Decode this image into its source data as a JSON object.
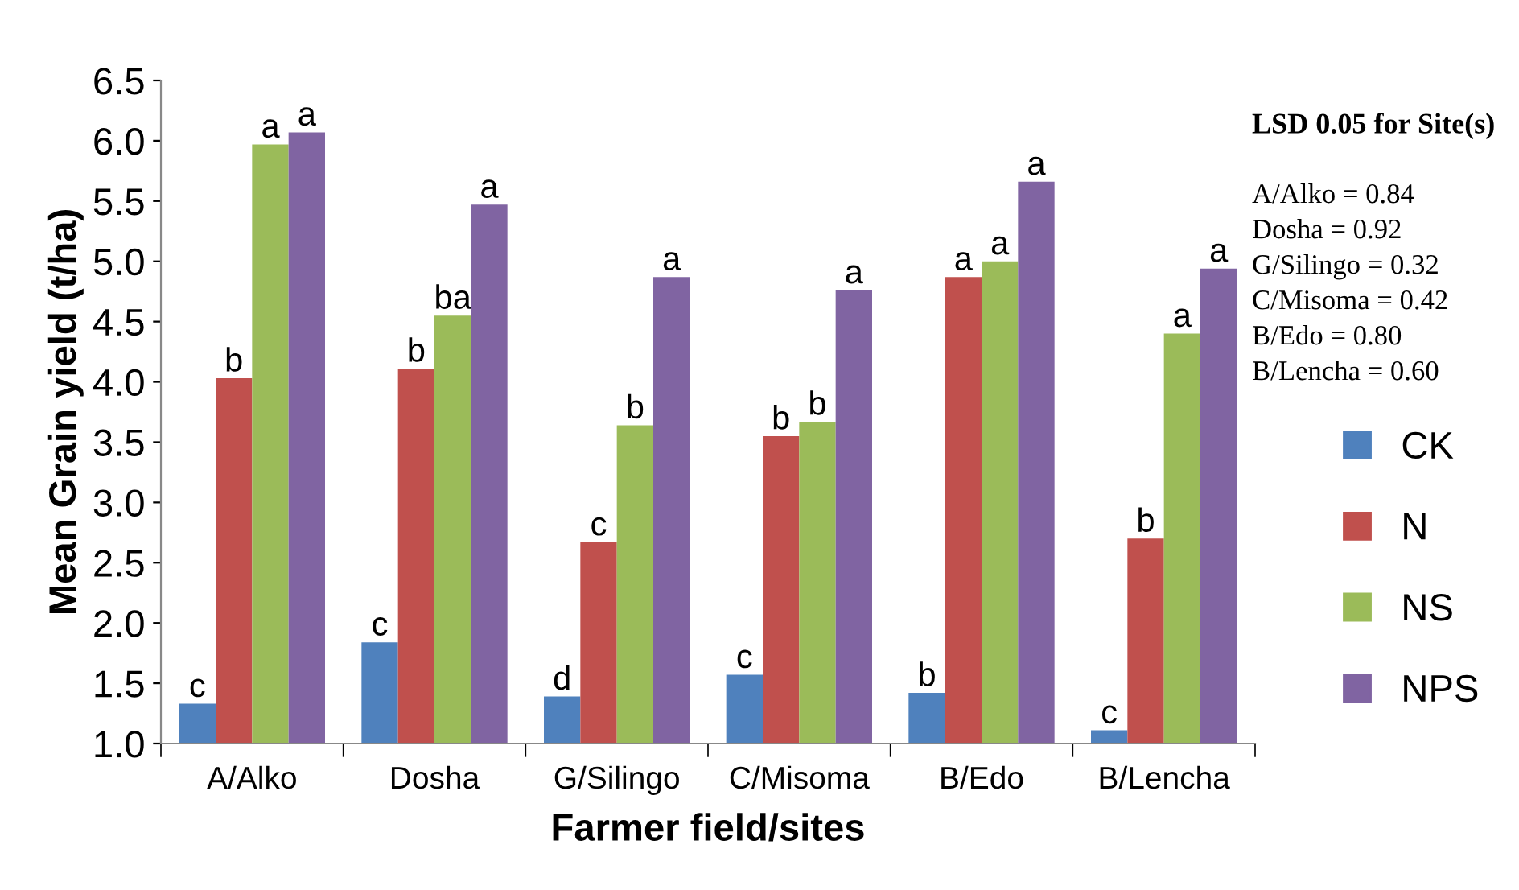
{
  "chart_data": {
    "type": "bar",
    "xlabel": "Farmer field/sites",
    "ylabel": "Mean Grain yield (t/ha)",
    "categories": [
      "A/Alko",
      "Dosha",
      "G/Silingo",
      "C/Misoma",
      "B/Edo",
      "B/Lencha"
    ],
    "series": [
      {
        "name": "CK",
        "color": "#4f81bd",
        "values": [
          1.33,
          1.84,
          1.39,
          1.57,
          1.42,
          1.11
        ],
        "value_labels": [
          "c",
          "c",
          "d",
          "c",
          "b",
          "c"
        ]
      },
      {
        "name": "N",
        "color": "#c0504d",
        "values": [
          4.03,
          4.11,
          2.67,
          3.55,
          4.87,
          2.7
        ],
        "value_labels": [
          "b",
          "b",
          "c",
          "b",
          "a",
          "b"
        ]
      },
      {
        "name": "NS",
        "color": "#9bbb59",
        "values": [
          5.97,
          4.55,
          3.64,
          3.67,
          5.0,
          4.4
        ],
        "value_labels": [
          "a",
          "ba",
          "b",
          "b",
          "a",
          "a"
        ]
      },
      {
        "name": "NPS",
        "color": "#8064a2",
        "values": [
          6.07,
          5.47,
          4.87,
          4.76,
          5.66,
          4.94
        ],
        "value_labels": [
          "a",
          "a",
          "a",
          "a",
          "a",
          "a"
        ]
      }
    ],
    "ylim": [
      1.0,
      6.5
    ],
    "yticks": [
      {
        "value": 1.0,
        "label": "1.0"
      },
      {
        "value": 1.5,
        "label": "1.5"
      },
      {
        "value": 2.0,
        "label": "2.0"
      },
      {
        "value": 2.5,
        "label": "2.5"
      },
      {
        "value": 3.0,
        "label": "3.0"
      },
      {
        "value": 3.5,
        "label": "3.5"
      },
      {
        "value": 4.0,
        "label": "4.0"
      },
      {
        "value": 4.5,
        "label": "4.5"
      },
      {
        "value": 5.0,
        "label": "5.0"
      },
      {
        "value": 5.5,
        "label": "5.5"
      },
      {
        "value": 6.0,
        "label": "6.0"
      },
      {
        "value": 6.5,
        "label": "6.5"
      }
    ],
    "grid": false,
    "legend": "bottom right",
    "annotations": [
      "LSD 0.05 for Site(s)",
      "A/Alko = 0.84",
      "Dosha = 0.92",
      "G/Silingo = 0.32",
      "C/Misoma = 0.42",
      "B/Edo = 0.80",
      "B/Lencha = 0.60"
    ]
  }
}
